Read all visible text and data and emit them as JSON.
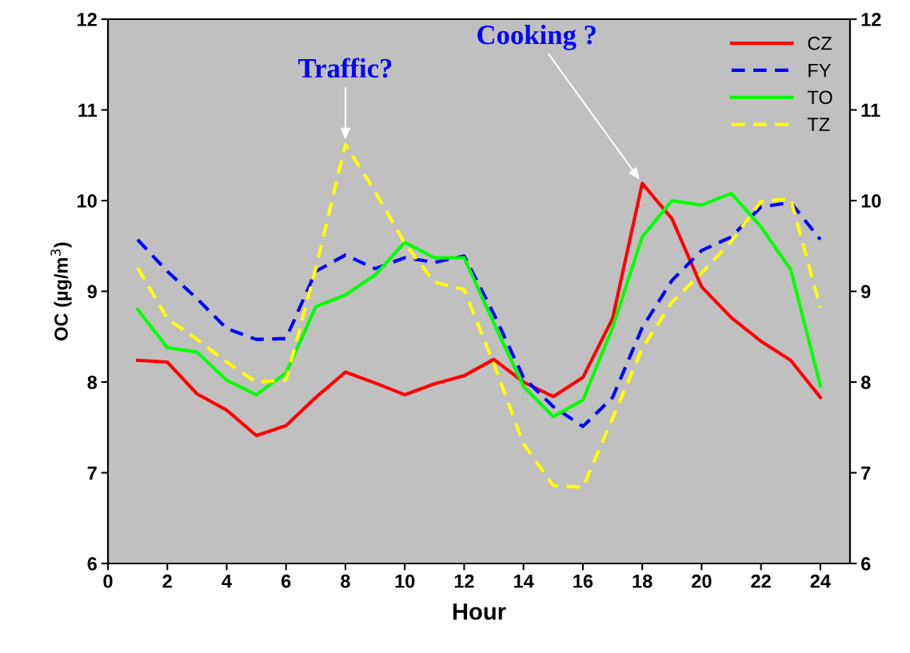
{
  "chart_data": {
    "type": "line",
    "xlabel": "Hour",
    "ylabel": "OC (µg/m$^{3}$)",
    "x": [
      1,
      2,
      3,
      4,
      5,
      6,
      7,
      8,
      9,
      10,
      11,
      12,
      13,
      14,
      15,
      16,
      17,
      18,
      19,
      20,
      21,
      22,
      23,
      24
    ],
    "series": [
      {
        "name": "CZ",
        "color": "#ff0000",
        "line_style": "solid",
        "values": [
          8.24,
          8.22,
          7.87,
          7.69,
          7.41,
          7.52,
          7.83,
          8.11,
          7.99,
          7.86,
          7.98,
          8.07,
          8.25,
          8.0,
          7.84,
          8.05,
          8.7,
          10.19,
          9.8,
          9.05,
          8.71,
          8.45,
          8.24,
          7.83
        ]
      },
      {
        "name": "FY",
        "color": "#0000ff",
        "line_style": "dashed",
        "values": [
          9.57,
          9.22,
          8.92,
          8.59,
          8.47,
          8.48,
          9.22,
          9.4,
          9.25,
          9.37,
          9.32,
          9.39,
          8.75,
          8.05,
          7.73,
          7.51,
          7.83,
          8.6,
          9.12,
          9.45,
          9.6,
          9.93,
          9.98,
          9.57
        ]
      },
      {
        "name": "TO",
        "color": "#00ff00",
        "line_style": "solid",
        "values": [
          8.8,
          8.38,
          8.33,
          8.02,
          7.86,
          8.1,
          8.83,
          8.96,
          9.18,
          9.54,
          9.37,
          9.37,
          8.65,
          7.95,
          7.62,
          7.8,
          8.6,
          9.6,
          10.0,
          9.95,
          10.08,
          9.71,
          9.24,
          7.96
        ]
      },
      {
        "name": "TZ",
        "color": "#ffff00",
        "line_style": "dashed",
        "values": [
          9.26,
          8.7,
          8.47,
          8.22,
          8.0,
          8.02,
          9.25,
          10.62,
          10.1,
          9.53,
          9.1,
          9.02,
          8.2,
          7.32,
          6.86,
          6.84,
          7.6,
          8.37,
          8.88,
          9.2,
          9.55,
          9.99,
          10.02,
          8.82
        ]
      }
    ],
    "xlim": [
      0,
      25
    ],
    "xticks": [
      0,
      2,
      4,
      6,
      8,
      10,
      12,
      14,
      16,
      18,
      20,
      22,
      24
    ],
    "ylim": [
      6,
      12
    ],
    "yticks": [
      6,
      7,
      8,
      9,
      10,
      11,
      12
    ],
    "y2lim": [
      6,
      12
    ],
    "y2ticks": [
      6,
      7,
      8,
      9,
      10,
      11,
      12
    ],
    "annotations": [
      {
        "text": "Traffic?",
        "x": 8,
        "y": 10.62
      },
      {
        "text": "Cooking ?",
        "x": 18,
        "y": 10.19
      }
    ],
    "legend": "top right",
    "grid": false,
    "marker": "none"
  }
}
